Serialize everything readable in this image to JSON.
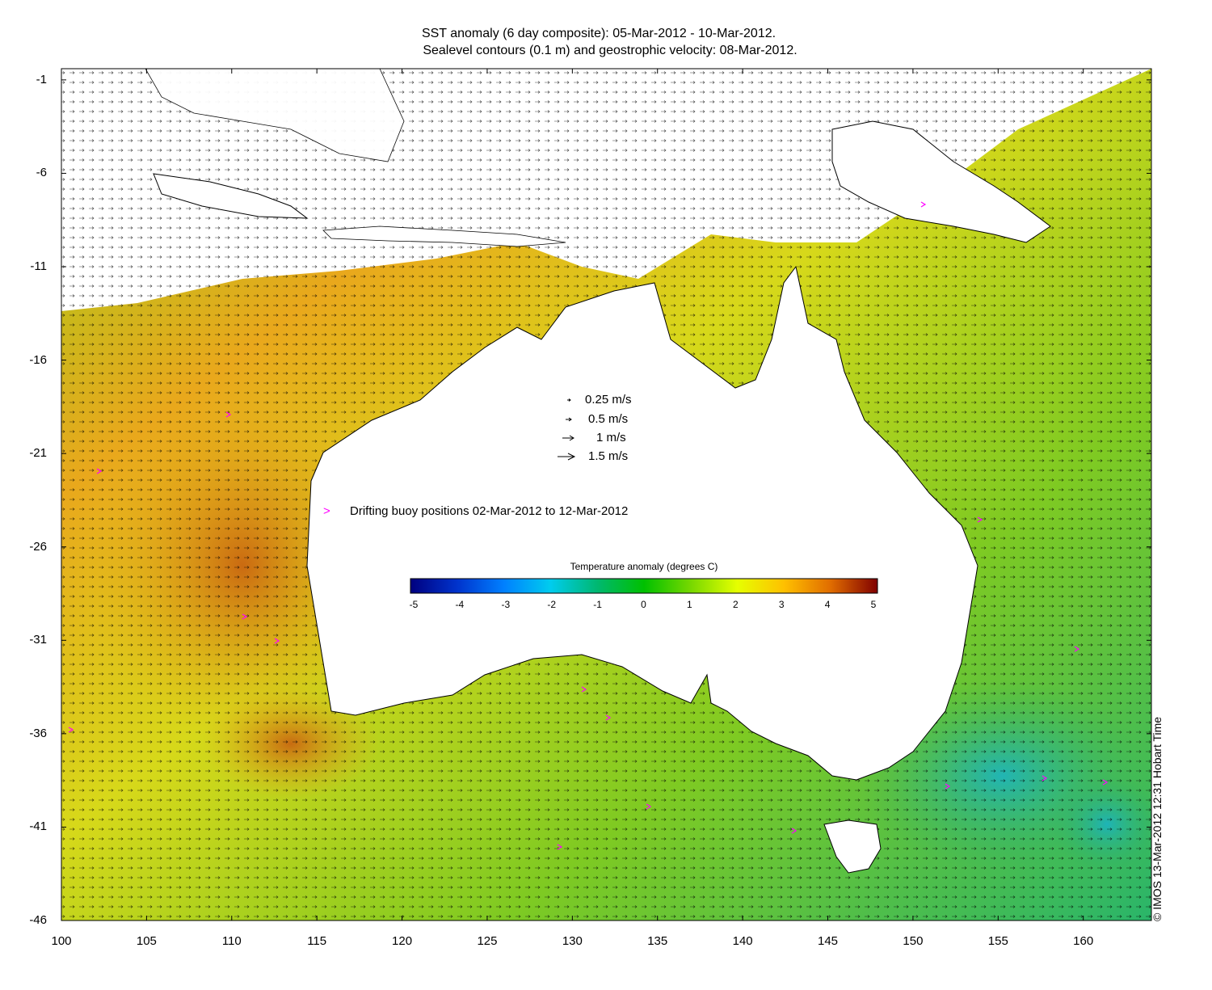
{
  "title_line1": "SST anomaly (6 day composite): 05-Mar-2012 - 10-Mar-2012.",
  "title_line2": "Sealevel contours (0.1 m) and geostrophic velocity: 08-Mar-2012.",
  "map": {
    "lon_range": [
      100,
      164
    ],
    "lat_range": [
      -46,
      -0.4
    ],
    "lon_ticks": [
      "100",
      "105",
      "110",
      "115",
      "120",
      "125",
      "130",
      "135",
      "140",
      "145",
      "150",
      "155",
      "160"
    ],
    "lat_ticks": [
      "-1",
      "-6",
      "-11",
      "-16",
      "-21",
      "-26",
      "-31",
      "-36",
      "-41",
      "-46"
    ]
  },
  "velocity_legend": [
    {
      "label": "0.25 m/s",
      "speed": 0.25
    },
    {
      "label": "0.5 m/s",
      "speed": 0.5
    },
    {
      "label": "1 m/s",
      "speed": 1
    },
    {
      "label": "1.5 m/s",
      "speed": 1.5
    }
  ],
  "buoy_legend": {
    "marker": ">",
    "label": "Drifting buoy positions 02-Mar-2012 to 12-Mar-2012",
    "color": "#ff00ff"
  },
  "colorbar": {
    "title": "Temperature anomaly (degrees C)",
    "ticks": [
      "-5",
      "-4",
      "-3",
      "-2",
      "-1",
      "0",
      "1",
      "2",
      "3",
      "4",
      "5"
    ],
    "range": [
      -5,
      5
    ],
    "colors": [
      "#00007f",
      "#0033cc",
      "#0080ff",
      "#00ccee",
      "#00b870",
      "#00c000",
      "#77d800",
      "#e6ff00",
      "#ffc000",
      "#e06c00",
      "#800000"
    ]
  },
  "credit": "© IMOS 13-Mar-2012 12:31 Hobart Time"
}
